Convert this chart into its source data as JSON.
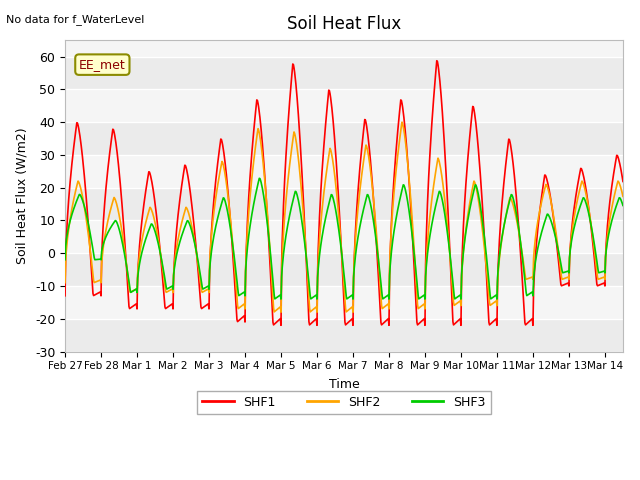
{
  "title": "Soil Heat Flux",
  "subtitle": "No data for f_WaterLevel",
  "ylabel": "Soil Heat Flux (W/m2)",
  "xlabel": "Time",
  "ylim": [
    -30,
    65
  ],
  "yticks": [
    -30,
    -20,
    -10,
    0,
    10,
    20,
    30,
    40,
    50,
    60
  ],
  "fig_bg_color": "#ffffff",
  "plot_bg_color": "#f0f0f0",
  "grid_color": "#ffffff",
  "x_tick_labels": [
    "Feb 27",
    "Feb 28",
    "Mar 1",
    "Mar 2",
    "Mar 3",
    "Mar 4",
    "Mar 5",
    "Mar 6",
    "Mar 7",
    "Mar 8",
    "Mar 9",
    "Mar 10",
    "Mar 11",
    "Mar 12",
    "Mar 13",
    "Mar 14"
  ],
  "shf1_color": "#ff0000",
  "shf2_color": "#ffa500",
  "shf3_color": "#00cc00",
  "line_width": 1.2,
  "annotation_text": "EE_met",
  "shf1_day_peaks": [
    40,
    38,
    25,
    27,
    35,
    47,
    58,
    50,
    41,
    47,
    59,
    45,
    35,
    24,
    26,
    30
  ],
  "shf1_day_troughs": [
    -13,
    -17,
    -17,
    -17,
    -21,
    -22,
    -22,
    -22,
    -22,
    -22,
    -22,
    -22,
    -22,
    -10,
    -10,
    -5
  ],
  "shf2_day_peaks": [
    22,
    17,
    14,
    14,
    28,
    38,
    37,
    32,
    33,
    40,
    29,
    22,
    17,
    21,
    22,
    22
  ],
  "shf2_day_troughs": [
    -9,
    -12,
    -12,
    -12,
    -17,
    -18,
    -18,
    -18,
    -17,
    -17,
    -16,
    -16,
    -8,
    -8,
    -8,
    -4
  ],
  "shf3_day_peaks": [
    18,
    10,
    9,
    10,
    17,
    23,
    19,
    18,
    18,
    21,
    19,
    21,
    18,
    12,
    17,
    17
  ],
  "shf3_day_troughs": [
    -2,
    -12,
    -11,
    -11,
    -13,
    -14,
    -14,
    -14,
    -14,
    -14,
    -14,
    -14,
    -13,
    -6,
    -6,
    -4
  ]
}
